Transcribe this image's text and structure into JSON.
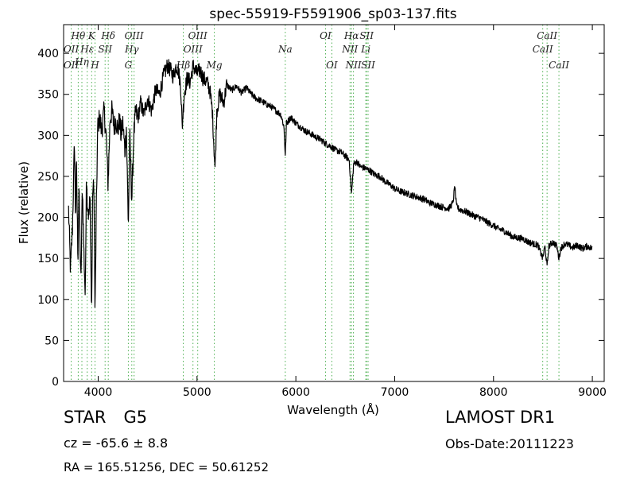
{
  "chart_data": {
    "type": "line",
    "title": "spec-55919-F5591906_sp03-137.fits",
    "xlabel": "Wavelength (Å)",
    "ylabel": "Flux (relative)",
    "xlim": [
      3650,
      9120
    ],
    "ylim": [
      0,
      435
    ],
    "x_ticks": [
      "4000",
      "5000",
      "6000",
      "7000",
      "8000",
      "9000"
    ],
    "y_ticks": [
      "0",
      "50",
      "100",
      "150",
      "200",
      "250",
      "300",
      "350",
      "400"
    ],
    "x_tick_values": [
      4000,
      5000,
      6000,
      7000,
      8000,
      9000
    ],
    "y_tick_values": [
      0,
      50,
      100,
      150,
      200,
      250,
      300,
      350,
      400
    ],
    "grid": false,
    "line_color": "#000000",
    "marker_color": "#4caf50",
    "spectral_lines": [
      {
        "label": "Hθ",
        "x": 3798,
        "row": 0
      },
      {
        "label": "K",
        "x": 3934,
        "row": 0
      },
      {
        "label": "Hδ",
        "x": 4102,
        "row": 0
      },
      {
        "label": "OIII",
        "x": 4363,
        "row": 0
      },
      {
        "label": "OIII",
        "x": 5007,
        "row": 0
      },
      {
        "label": "OI",
        "x": 6300,
        "row": 0
      },
      {
        "label": "Hα",
        "x": 6563,
        "row": 0
      },
      {
        "label": "SII",
        "x": 6716,
        "row": 0
      },
      {
        "label": "CaII",
        "x": 8542,
        "row": 0
      },
      {
        "label": "OII",
        "x": 3727,
        "row": 1
      },
      {
        "label": "Hε",
        "x": 3889,
        "row": 1
      },
      {
        "label": "SII",
        "x": 4070,
        "row": 1
      },
      {
        "label": "Hγ",
        "x": 4340,
        "row": 1
      },
      {
        "label": "OIII",
        "x": 4959,
        "row": 1
      },
      {
        "label": "Na",
        "x": 5893,
        "row": 1
      },
      {
        "label": "NII",
        "x": 6548,
        "row": 1
      },
      {
        "label": "Li",
        "x": 6708,
        "row": 1
      },
      {
        "label": "CaII",
        "x": 8498,
        "row": 1
      },
      {
        "label": "Hη",
        "x": 3835,
        "row": 2
      },
      {
        "label": "OII",
        "x": 3727,
        "row": 3
      },
      {
        "label": "H",
        "x": 3968,
        "row": 3
      },
      {
        "label": "G",
        "x": 4305,
        "row": 3
      },
      {
        "label": "Hβ",
        "x": 4861,
        "row": 3
      },
      {
        "label": "Mg",
        "x": 5175,
        "row": 3
      },
      {
        "label": "OI",
        "x": 6364,
        "row": 3
      },
      {
        "label": "NII",
        "x": 6583,
        "row": 3
      },
      {
        "label": "SII",
        "x": 6731,
        "row": 3
      },
      {
        "label": "CaII",
        "x": 8662,
        "row": 3
      }
    ],
    "spectrum": {
      "anchors": [
        [
          3700,
          210
        ],
        [
          3720,
          135
        ],
        [
          3740,
          190
        ],
        [
          3760,
          292
        ],
        [
          3770,
          200
        ],
        [
          3780,
          265
        ],
        [
          3795,
          150
        ],
        [
          3805,
          235
        ],
        [
          3815,
          180
        ],
        [
          3825,
          115
        ],
        [
          3840,
          240
        ],
        [
          3855,
          160
        ],
        [
          3870,
          100
        ],
        [
          3880,
          250
        ],
        [
          3890,
          220
        ],
        [
          3905,
          200
        ],
        [
          3918,
          225
        ],
        [
          3933,
          78
        ],
        [
          3945,
          240
        ],
        [
          3958,
          230
        ],
        [
          3968,
          78
        ],
        [
          3980,
          200
        ],
        [
          3995,
          310
        ],
        [
          4015,
          322
        ],
        [
          4035,
          305
        ],
        [
          4060,
          330
        ],
        [
          4080,
          300
        ],
        [
          4100,
          240
        ],
        [
          4120,
          320
        ],
        [
          4140,
          330
        ],
        [
          4160,
          310
        ],
        [
          4180,
          320
        ],
        [
          4200,
          305
        ],
        [
          4215,
          320
        ],
        [
          4230,
          300
        ],
        [
          4250,
          315
        ],
        [
          4270,
          280
        ],
        [
          4285,
          310
        ],
        [
          4305,
          190
        ],
        [
          4320,
          300
        ],
        [
          4340,
          220
        ],
        [
          4360,
          300
        ],
        [
          4380,
          330
        ],
        [
          4400,
          320
        ],
        [
          4430,
          340
        ],
        [
          4460,
          325
        ],
        [
          4500,
          345
        ],
        [
          4540,
          330
        ],
        [
          4580,
          355
        ],
        [
          4620,
          350
        ],
        [
          4660,
          372
        ],
        [
          4700,
          385
        ],
        [
          4730,
          380
        ],
        [
          4760,
          372
        ],
        [
          4790,
          385
        ],
        [
          4810,
          380
        ],
        [
          4835,
          360
        ],
        [
          4850,
          310
        ],
        [
          4870,
          350
        ],
        [
          4900,
          370
        ],
        [
          4930,
          365
        ],
        [
          4960,
          385
        ],
        [
          5000,
          375
        ],
        [
          5030,
          380
        ],
        [
          5060,
          370
        ],
        [
          5100,
          365
        ],
        [
          5130,
          355
        ],
        [
          5155,
          330
        ],
        [
          5170,
          290
        ],
        [
          5183,
          258
        ],
        [
          5200,
          330
        ],
        [
          5230,
          350
        ],
        [
          5270,
          340
        ],
        [
          5300,
          362
        ],
        [
          5350,
          355
        ],
        [
          5400,
          360
        ],
        [
          5450,
          352
        ],
        [
          5500,
          358
        ],
        [
          5550,
          350
        ],
        [
          5600,
          345
        ],
        [
          5650,
          342
        ],
        [
          5700,
          338
        ],
        [
          5750,
          335
        ],
        [
          5800,
          330
        ],
        [
          5850,
          325
        ],
        [
          5880,
          310
        ],
        [
          5893,
          275
        ],
        [
          5905,
          315
        ],
        [
          5950,
          322
        ],
        [
          6000,
          315
        ],
        [
          6050,
          310
        ],
        [
          6100,
          305
        ],
        [
          6150,
          302
        ],
        [
          6200,
          298
        ],
        [
          6250,
          295
        ],
        [
          6300,
          290
        ],
        [
          6350,
          287
        ],
        [
          6400,
          282
        ],
        [
          6450,
          280
        ],
        [
          6500,
          275
        ],
        [
          6540,
          270
        ],
        [
          6563,
          228
        ],
        [
          6585,
          265
        ],
        [
          6620,
          268
        ],
        [
          6650,
          262
        ],
        [
          6700,
          260
        ],
        [
          6750,
          257
        ],
        [
          6800,
          252
        ],
        [
          6850,
          250
        ],
        [
          6900,
          244
        ],
        [
          6950,
          240
        ],
        [
          7000,
          235
        ],
        [
          7050,
          232
        ],
        [
          7100,
          230
        ],
        [
          7150,
          228
        ],
        [
          7200,
          226
        ],
        [
          7250,
          224
        ],
        [
          7300,
          222
        ],
        [
          7350,
          218
        ],
        [
          7400,
          216
        ],
        [
          7450,
          214
        ],
        [
          7500,
          212
        ],
        [
          7550,
          211
        ],
        [
          7590,
          218
        ],
        [
          7608,
          238
        ],
        [
          7625,
          214
        ],
        [
          7650,
          210
        ],
        [
          7700,
          208
        ],
        [
          7750,
          205
        ],
        [
          7800,
          202
        ],
        [
          7850,
          200
        ],
        [
          7900,
          197
        ],
        [
          7950,
          193
        ],
        [
          8000,
          190
        ],
        [
          8050,
          186
        ],
        [
          8100,
          184
        ],
        [
          8150,
          180
        ],
        [
          8200,
          176
        ],
        [
          8250,
          175
        ],
        [
          8300,
          174
        ],
        [
          8350,
          170
        ],
        [
          8400,
          168
        ],
        [
          8450,
          166
        ],
        [
          8498,
          150
        ],
        [
          8520,
          165
        ],
        [
          8542,
          140
        ],
        [
          8560,
          165
        ],
        [
          8600,
          170
        ],
        [
          8640,
          165
        ],
        [
          8662,
          150
        ],
        [
          8680,
          162
        ],
        [
          8720,
          168
        ],
        [
          8760,
          166
        ],
        [
          8800,
          163
        ],
        [
          8850,
          166
        ],
        [
          8900,
          162
        ],
        [
          8950,
          165
        ],
        [
          9000,
          162
        ]
      ]
    }
  },
  "footer": {
    "object_class": "STAR",
    "subclass": "G5",
    "survey": "LAMOST DR1",
    "redshift": "cz = -65.6 ± 8.8",
    "obs_date": "Obs-Date:20111223",
    "coordinates": "RA = 165.51256, DEC = 50.61252"
  }
}
